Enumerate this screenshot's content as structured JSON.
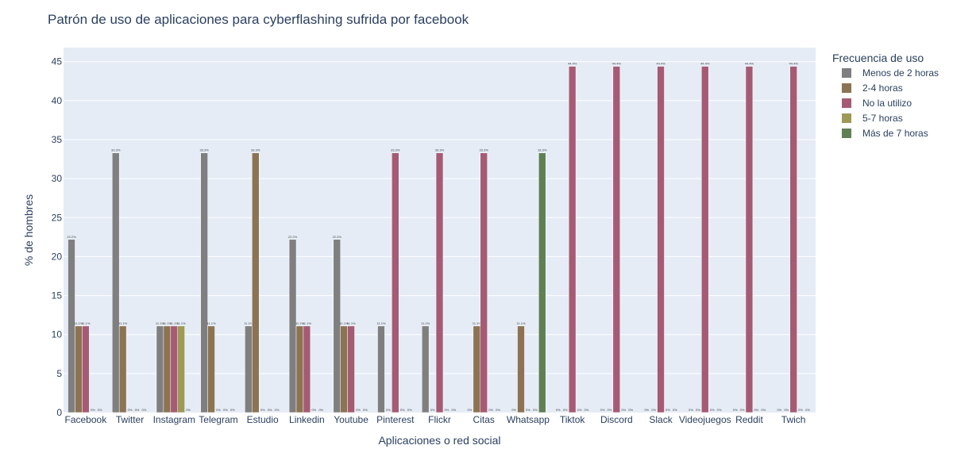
{
  "chart_data": {
    "type": "bar",
    "title": "Patrón de uso de aplicaciones para cyberflashing sufrida por facebook",
    "xlabel": "Aplicaciones o red social",
    "ylabel": "% de hombres",
    "ylim": [
      0,
      46.8
    ],
    "yticks": [
      0,
      5,
      10,
      15,
      20,
      25,
      30,
      35,
      40,
      45
    ],
    "grid": true,
    "legend_title": "Frecuencia de uso",
    "legend_position": "right",
    "categories": [
      "Facebook",
      "Twitter",
      "Instagram",
      "Telegram",
      "Estudio",
      "Linkedin",
      "Youtube",
      "Pinterest",
      "Flickr",
      "Citas",
      "Whatsapp",
      "Tiktok",
      "Discord",
      "Slack",
      "Videojuegos",
      "Reddit",
      "Twich"
    ],
    "series": [
      {
        "name": "Menos de 2 horas",
        "color": "#7f7f7f",
        "values": [
          22.2,
          33.3,
          11.1,
          33.3,
          11.1,
          22.2,
          22.2,
          11.1,
          11.1,
          0,
          0,
          0,
          0,
          0,
          0,
          0,
          0
        ]
      },
      {
        "name": "2-4 horas",
        "color": "#8c7353",
        "values": [
          11.1,
          11.1,
          11.1,
          11.1,
          33.3,
          11.1,
          11.1,
          0,
          0,
          11.1,
          11.1,
          0,
          0,
          0,
          0,
          0,
          0
        ]
      },
      {
        "name": "No la utilizo",
        "color": "#a55b74",
        "values": [
          11.1,
          0,
          11.1,
          0,
          0,
          11.1,
          11.1,
          33.3,
          33.3,
          33.3,
          0,
          44.4,
          44.4,
          44.4,
          44.4,
          44.4,
          44.4
        ]
      },
      {
        "name": "5-7 horas",
        "color": "#9c9a55",
        "values": [
          0,
          0,
          11.1,
          0,
          0,
          0,
          0,
          0,
          0,
          0,
          0,
          0,
          0,
          0,
          0,
          0,
          0
        ]
      },
      {
        "name": "Más de 7 horas",
        "color": "#5f7f55",
        "values": [
          0,
          0,
          0,
          0,
          0,
          0,
          0,
          0,
          0,
          0,
          33.3,
          0,
          0,
          0,
          0,
          0,
          0
        ]
      }
    ]
  }
}
